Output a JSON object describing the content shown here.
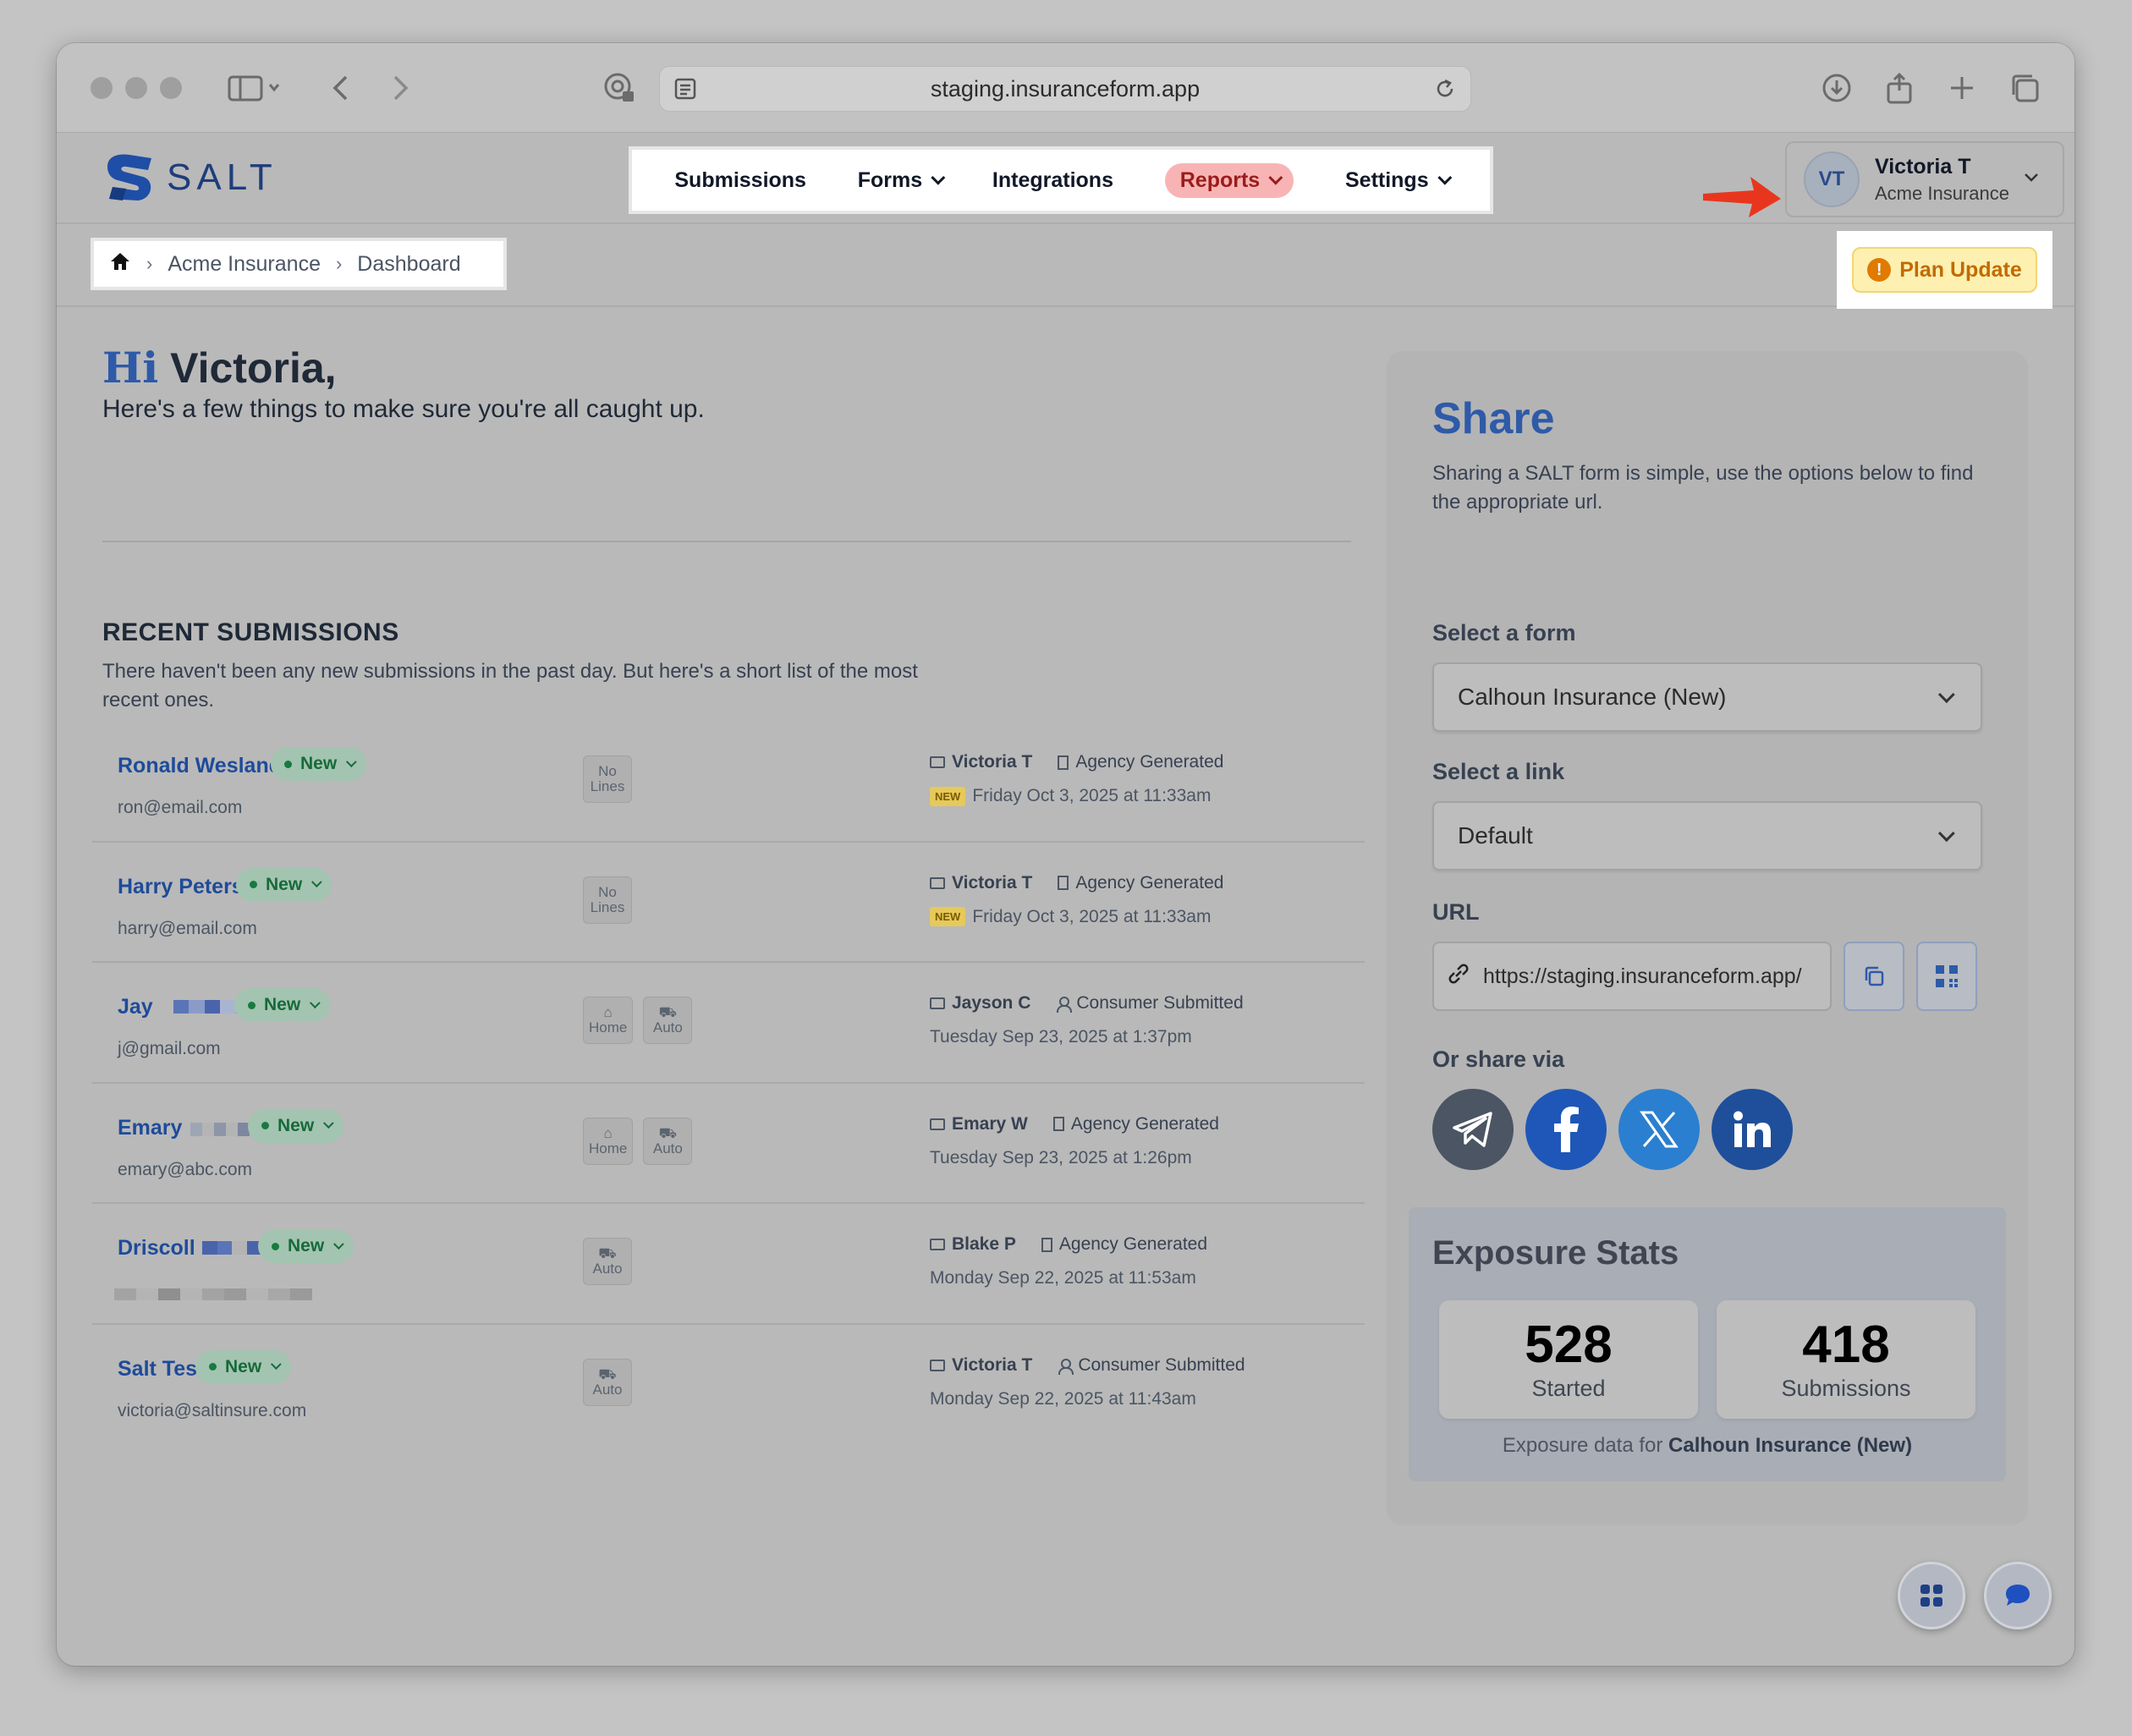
{
  "browser": {
    "url": "staging.insuranceform.app"
  },
  "header": {
    "brand": "SALT",
    "nav": [
      {
        "label": "Submissions",
        "has_dropdown": false
      },
      {
        "label": "Forms",
        "has_dropdown": true
      },
      {
        "label": "Integrations",
        "has_dropdown": false
      },
      {
        "label": "Reports",
        "has_dropdown": true,
        "highlighted": true
      },
      {
        "label": "Settings",
        "has_dropdown": true
      }
    ],
    "user": {
      "initials": "VT",
      "name": "Victoria T",
      "org": "Acme Insurance"
    }
  },
  "breadcrumb": {
    "items": [
      "Acme Insurance",
      "Dashboard"
    ]
  },
  "plan_update": {
    "icon": "!",
    "label": "Plan Update"
  },
  "greeting": {
    "hi": "Hi",
    "name": "Victoria,",
    "subtitle": "Here's a few things to make sure you're all caught up."
  },
  "recent": {
    "title": "RECENT SUBMISSIONS",
    "description": "There haven't been any new submissions in the past day. But here's a short list of the most recent ones.",
    "rows": [
      {
        "name": "Ronald Wesland",
        "status": "New",
        "email": "ron@email.com",
        "lines": [
          {
            "line1": "No",
            "line2": "Lines"
          }
        ],
        "owner": "Victoria T",
        "source": "Agency Generated",
        "source_type": "agency",
        "is_new": true,
        "new_tag": "NEW",
        "date": "Friday Oct 3, 2025 at 11:33am"
      },
      {
        "name": "Harry Peters",
        "status": "New",
        "email": "harry@email.com",
        "lines": [
          {
            "line1": "No",
            "line2": "Lines"
          }
        ],
        "owner": "Victoria T",
        "source": "Agency Generated",
        "source_type": "agency",
        "is_new": true,
        "new_tag": "NEW",
        "date": "Friday Oct 3, 2025 at 11:33am"
      },
      {
        "name": "Jay",
        "status": "New",
        "email": "j@gmail.com",
        "lines": [
          {
            "line1": "⌂",
            "line2": "Home"
          },
          {
            "line1": "⛟",
            "line2": "Auto"
          }
        ],
        "owner": "Jayson C",
        "source": "Consumer Submitted",
        "source_type": "consumer",
        "is_new": false,
        "date": "Tuesday Sep 23, 2025 at 1:37pm"
      },
      {
        "name": "Emary",
        "status": "New",
        "email": "emary@abc.com",
        "lines": [
          {
            "line1": "⌂",
            "line2": "Home"
          },
          {
            "line1": "⛟",
            "line2": "Auto"
          }
        ],
        "owner": "Emary W",
        "source": "Agency Generated",
        "source_type": "agency",
        "is_new": false,
        "date": "Tuesday Sep 23, 2025 at 1:26pm"
      },
      {
        "name": "Driscoll",
        "status": "New",
        "email": "",
        "lines": [
          {
            "line1": "⛟",
            "line2": "Auto"
          }
        ],
        "owner": "Blake P",
        "source": "Agency Generated",
        "source_type": "agency",
        "is_new": false,
        "date": "Monday Sep 22, 2025 at 11:53am"
      },
      {
        "name": "Salt Test",
        "status": "New",
        "email": "victoria@saltinsure.com",
        "lines": [
          {
            "line1": "⛟",
            "line2": "Auto"
          }
        ],
        "owner": "Victoria T",
        "source": "Consumer Submitted",
        "source_type": "consumer",
        "is_new": false,
        "date": "Monday Sep 22, 2025 at 11:43am"
      }
    ]
  },
  "share": {
    "title": "Share",
    "description": "Sharing a SALT form is simple, use the options below to find the appropriate url.",
    "form_label": "Select a form",
    "form_value": "Calhoun Insurance (New)",
    "link_label": "Select a link",
    "link_value": "Default",
    "url_label": "URL",
    "url_value": "https://staging.insuranceform.app/",
    "share_via_label": "Or share via",
    "social": [
      "telegram-icon",
      "facebook-icon",
      "x-icon",
      "linkedin-icon"
    ],
    "colors": {
      "telegram": "#4b5563",
      "facebook": "#1e57b8",
      "x": "#2b7fd0",
      "linkedin": "#1f4f9a"
    }
  },
  "exposure": {
    "title": "Exposure Stats",
    "started_value": "528",
    "started_label": "Started",
    "submissions_value": "418",
    "submissions_label": "Submissions",
    "footer_prefix": "Exposure data for",
    "footer_form": "Calhoun Insurance (New)"
  }
}
